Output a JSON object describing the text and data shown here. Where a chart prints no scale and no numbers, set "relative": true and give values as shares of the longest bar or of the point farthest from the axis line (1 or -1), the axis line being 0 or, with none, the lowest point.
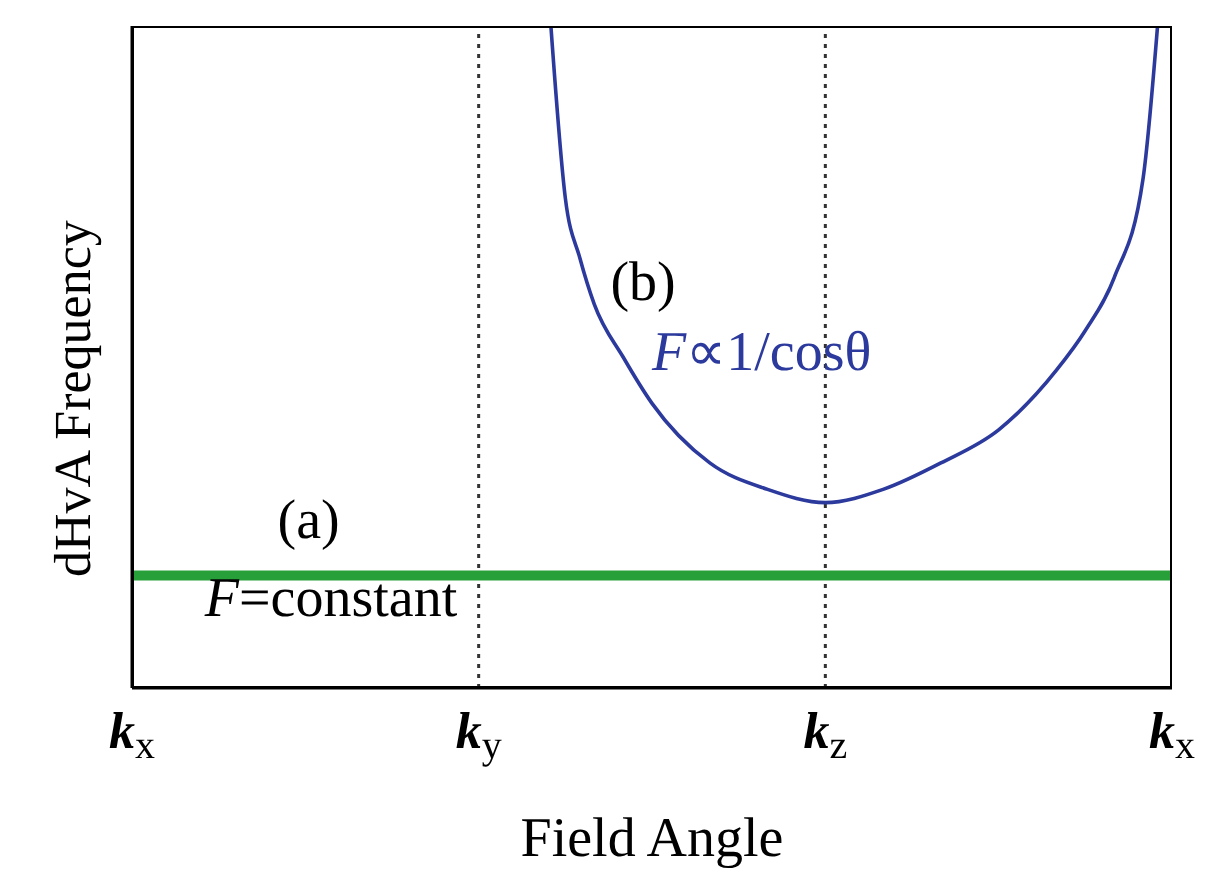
{
  "chart_data": {
    "type": "line",
    "relative": true,
    "xlabel": "Field Angle",
    "ylabel": "dHvA Frequency",
    "categories": [
      "k$_{x}$",
      null,
      null,
      null,
      null,
      null,
      null,
      null,
      null,
      null,
      null,
      null,
      null,
      null,
      null,
      null,
      null,
      null,
      null,
      null,
      null,
      null,
      null,
      null,
      "k$_{y}$",
      null,
      null,
      null,
      null,
      null,
      null,
      null,
      null,
      null,
      null,
      null,
      null,
      null,
      null,
      null,
      null,
      null,
      null,
      null,
      null,
      null,
      null,
      null,
      "k$_{z}$",
      null,
      null,
      null,
      null,
      null,
      null,
      null,
      null,
      null,
      null,
      null,
      null,
      null,
      null,
      null,
      null,
      null,
      null,
      null,
      null,
      null,
      null,
      null,
      "k$_{x}$"
    ],
    "tick_labels": "x",
    "grid": false,
    "marker": "none",
    "line_style": "solid",
    "series": [
      {
        "color": "#27a03a",
        "values": [
          0.17,
          null,
          null,
          null,
          null,
          null,
          null,
          null,
          null,
          null,
          null,
          null,
          null,
          null,
          null,
          null,
          null,
          null,
          null,
          null,
          null,
          null,
          null,
          null,
          null,
          null,
          null,
          null,
          null,
          null,
          null,
          null,
          null,
          null,
          null,
          null,
          null,
          null,
          null,
          null,
          null,
          null,
          null,
          null,
          null,
          null,
          null,
          null,
          null,
          null,
          null,
          null,
          null,
          null,
          null,
          null,
          null,
          null,
          null,
          null,
          null,
          null,
          null,
          null,
          null,
          null,
          null,
          null,
          null,
          null,
          null,
          null,
          0.17
        ]
      },
      {
        "color": "#2b3a9c",
        "values": [
          null,
          null,
          null,
          null,
          null,
          null,
          null,
          null,
          null,
          null,
          null,
          null,
          null,
          null,
          null,
          null,
          null,
          null,
          null,
          null,
          null,
          null,
          null,
          null,
          null,
          null,
          null,
          null,
          null,
          1,
          0.74,
          0.65,
          0.58,
          null,
          0.5,
          null,
          0.43,
          null,
          null,
          null,
          0.34,
          null,
          null,
          null,
          0.3,
          null,
          null,
          null,
          0.28,
          null,
          null,
          null,
          0.3,
          null,
          null,
          null,
          0.34,
          null,
          null,
          null,
          0.39,
          null,
          null,
          null,
          0.48,
          null,
          0.54,
          null,
          0.62,
          null,
          0.77,
          1,
          null
        ]
      }
    ],
    "ref_lines": [
      {
        "axis": "x",
        "value": "k$_{y}$",
        "color": "#333333",
        "line_style": "dotted"
      },
      {
        "axis": "x",
        "value": "k$_{z}$",
        "color": "#333333",
        "line_style": "dotted"
      }
    ],
    "annotations": [
      "(a)",
      "F=constant",
      "(b)",
      "F∝1/cosθ"
    ]
  }
}
